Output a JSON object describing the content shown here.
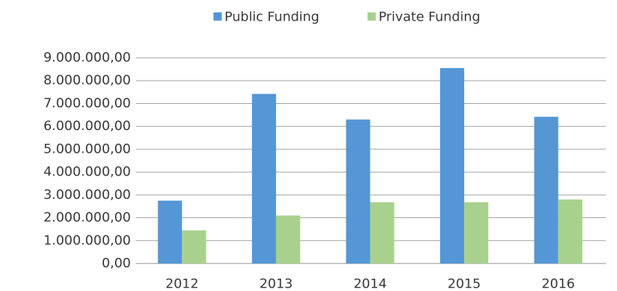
{
  "chart_data": {
    "type": "bar",
    "categories": [
      "2012",
      "2013",
      "2014",
      "2015",
      "2016"
    ],
    "series": [
      {
        "name": "Public Funding",
        "color": "#5596d4",
        "values": [
          2750000,
          7420000,
          6300000,
          8550000,
          6420000
        ]
      },
      {
        "name": "Private Funding",
        "color": "#a9d18e",
        "values": [
          1450000,
          2100000,
          2680000,
          2680000,
          2800000
        ]
      }
    ],
    "ylim": [
      0,
      9000000
    ],
    "yticks": [
      {
        "value": 0,
        "label": "0,00"
      },
      {
        "value": 1000000,
        "label": "1.000.000,00"
      },
      {
        "value": 2000000,
        "label": "2.000.000,00"
      },
      {
        "value": 3000000,
        "label": "3.000.000,00"
      },
      {
        "value": 4000000,
        "label": "4.000.000,00"
      },
      {
        "value": 5000000,
        "label": "5.000.000,00"
      },
      {
        "value": 6000000,
        "label": "6.000.000,00"
      },
      {
        "value": 7000000,
        "label": "7.000.000,00"
      },
      {
        "value": 8000000,
        "label": "8.000.000,00"
      },
      {
        "value": 9000000,
        "label": "9.000.000,00"
      }
    ],
    "grid": true,
    "legend": "top"
  }
}
